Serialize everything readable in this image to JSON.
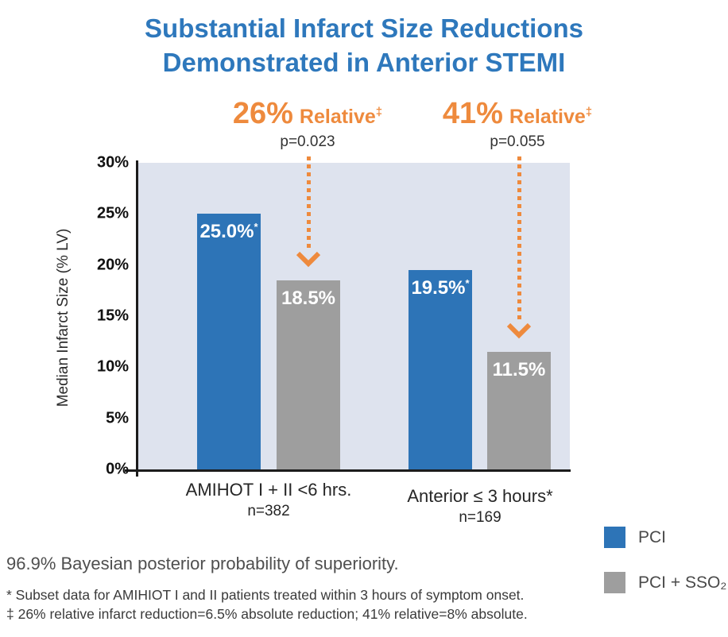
{
  "chart_data": {
    "type": "bar",
    "title": "Substantial Infarct Size Reductions Demonstrated in Anterior STEMI",
    "title_lines": [
      "Substantial Infarct Size Reductions",
      "Demonstrated in Anterior STEMI"
    ],
    "ylabel": "Median Infarct Size (% LV)",
    "ylim": [
      0,
      30
    ],
    "ytick_step": 5,
    "yticks": [
      "0%",
      "5%",
      "10%",
      "15%",
      "20%",
      "25%",
      "30%"
    ],
    "grid": false,
    "legend_position": "bottom-right",
    "categories": [
      "AMIHOT I + II <6 hrs.",
      "Anterior ≤ 3 hours*"
    ],
    "category_ns": [
      "n=382",
      "n=169"
    ],
    "series": [
      {
        "key": "pci",
        "name": "PCI",
        "color": "#2d74b7",
        "values": [
          25.0,
          19.5
        ],
        "bar_labels": [
          "25.0%",
          "19.5%"
        ],
        "label_sup": "*"
      },
      {
        "key": "pci-sso2",
        "name": "PCI + SSO₂",
        "color": "#9e9e9e",
        "values": [
          18.5,
          11.5
        ],
        "bar_labels": [
          "18.5%",
          "11.5%"
        ],
        "label_sup": ""
      }
    ],
    "annotations": [
      {
        "headline": "26%",
        "label": "Relative",
        "sup": "‡",
        "pvalue": "p=0.023"
      },
      {
        "headline": "41%",
        "label": "Relative",
        "sup": "‡",
        "pvalue": "p=0.055"
      }
    ]
  },
  "footnotes": {
    "bayesian": "96.9% Bayesian posterior probability of superiority.",
    "subset": "* Subset data for AMIHIOT I and II patients treated within 3 hours of symptom onset.",
    "relative": "‡ 26% relative infarct reduction=6.5% absolute reduction; 41% relative=8% absolute."
  },
  "colors": {
    "title_blue": "#2e78bc",
    "pci_blue": "#2d74b7",
    "sso2_gray": "#9e9e9e",
    "orange": "#ee8a3d",
    "plot_background": "#dee3ee",
    "axis": "#1c1c1c"
  }
}
